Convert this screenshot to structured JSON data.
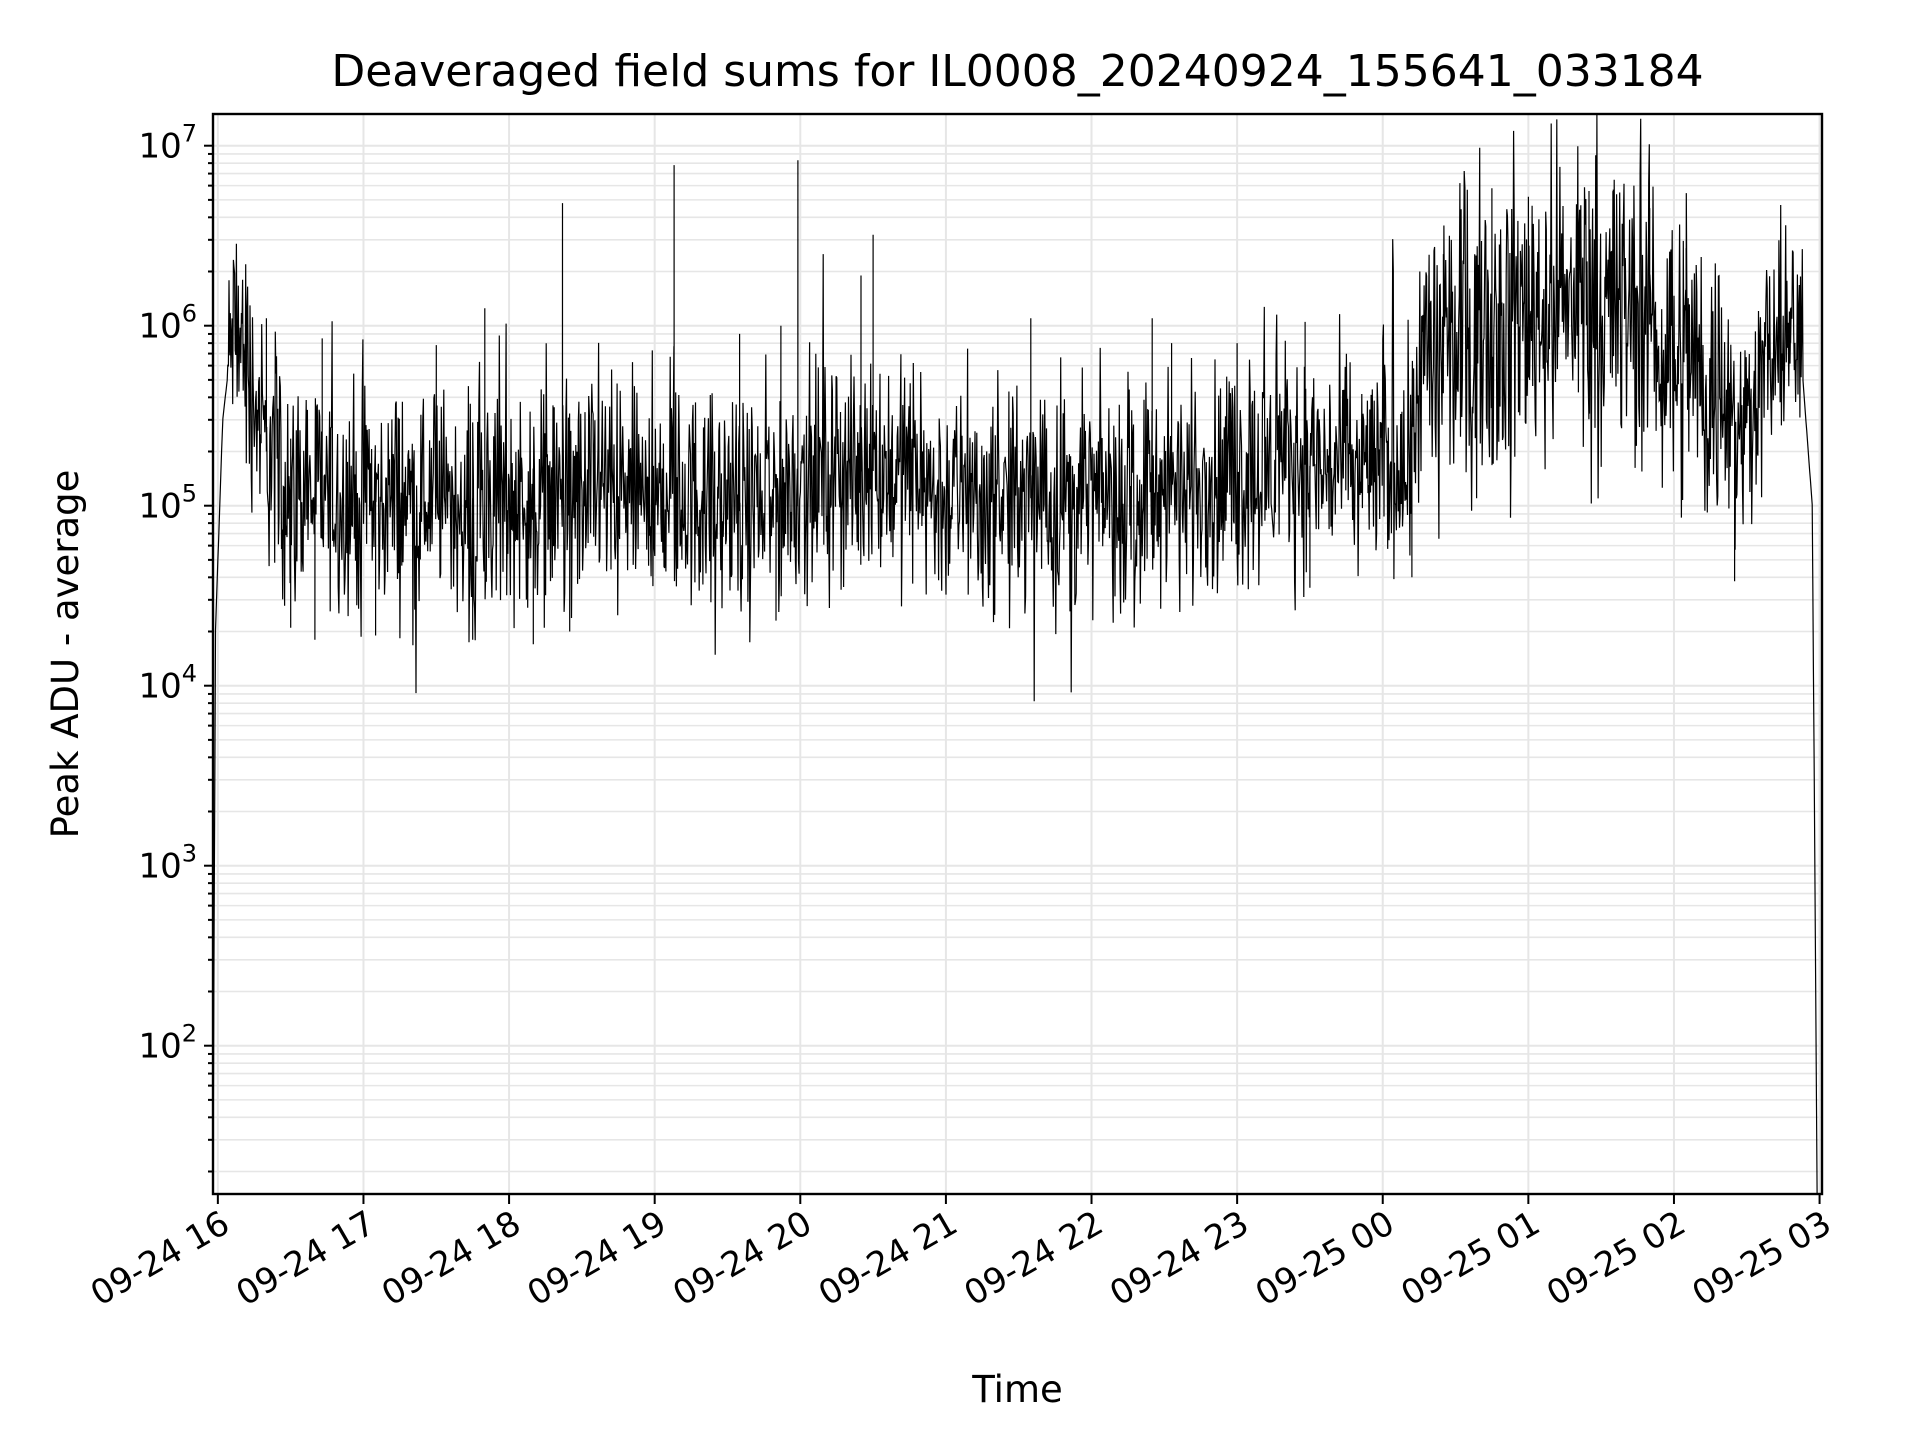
{
  "chart_data": {
    "type": "line",
    "title": "Deaveraged field sums for IL0008_20240924_155641_033184",
    "xlabel": "Time",
    "ylabel": "Peak ADU - average",
    "yscale": "log",
    "ylim": [
      15,
      15000000
    ],
    "xlim": [
      "2024-09-24 15:58",
      "2024-09-25 03:01"
    ],
    "grid": true,
    "x_tick_labels": [
      "09-24 16",
      "09-24 17",
      "09-24 18",
      "09-24 19",
      "09-24 20",
      "09-24 21",
      "09-24 22",
      "09-24 23",
      "09-25 00",
      "09-25 01",
      "09-25 02",
      "09-25 03"
    ],
    "x_ticks": [
      "2024-09-24 16:00",
      "2024-09-24 17:00",
      "2024-09-24 18:00",
      "2024-09-24 19:00",
      "2024-09-24 20:00",
      "2024-09-24 21:00",
      "2024-09-24 22:00",
      "2024-09-24 23:00",
      "2024-09-25 00:00",
      "2024-09-25 01:00",
      "2024-09-25 02:00",
      "2024-09-25 03:00"
    ],
    "y_ticks": [
      {
        "base": "10",
        "exp": "2",
        "value": 100
      },
      {
        "base": "10",
        "exp": "3",
        "value": 1000
      },
      {
        "base": "10",
        "exp": "4",
        "value": 10000
      },
      {
        "base": "10",
        "exp": "5",
        "value": 100000
      },
      {
        "base": "10",
        "exp": "6",
        "value": 1000000
      },
      {
        "base": "10",
        "exp": "7",
        "value": 10000000
      }
    ],
    "series": [
      {
        "color": "#000000",
        "envelope": [
          {
            "t": "2024-09-24 15:58",
            "v": 15
          },
          {
            "t": "2024-09-24 15:59",
            "v": 20000
          },
          {
            "t": "2024-09-24 16:02",
            "v": 300000
          },
          {
            "t": "2024-09-24 16:06",
            "v": 900000
          },
          {
            "t": "2024-09-24 16:10",
            "v": 800000
          },
          {
            "t": "2024-09-24 16:14",
            "v": 450000
          },
          {
            "t": "2024-09-24 16:20",
            "v": 200000
          },
          {
            "t": "2024-09-24 16:30",
            "v": 120000
          },
          {
            "t": "2024-09-24 17:00",
            "v": 110000
          },
          {
            "t": "2024-09-24 18:00",
            "v": 110000
          },
          {
            "t": "2024-09-24 19:00",
            "v": 120000
          },
          {
            "t": "2024-09-24 19:40",
            "v": 90000
          },
          {
            "t": "2024-09-24 19:58",
            "v": 120000
          },
          {
            "t": "2024-09-24 20:00",
            "v": 150000
          },
          {
            "t": "2024-09-24 20:50",
            "v": 160000
          },
          {
            "t": "2024-09-24 20:55",
            "v": 110000
          },
          {
            "t": "2024-09-24 22:00",
            "v": 110000
          },
          {
            "t": "2024-09-24 23:00",
            "v": 140000
          },
          {
            "t": "2024-09-24 23:20",
            "v": 180000
          },
          {
            "t": "2024-09-24 23:35",
            "v": 160000
          },
          {
            "t": "2024-09-25 00:10",
            "v": 180000
          },
          {
            "t": "2024-09-25 00:18",
            "v": 700000
          },
          {
            "t": "2024-09-25 00:40",
            "v": 900000
          },
          {
            "t": "2024-09-25 01:10",
            "v": 1400000
          },
          {
            "t": "2024-09-25 01:40",
            "v": 1300000
          },
          {
            "t": "2024-09-25 02:05",
            "v": 700000
          },
          {
            "t": "2024-09-25 02:20",
            "v": 400000
          },
          {
            "t": "2024-09-25 02:28",
            "v": 250000
          },
          {
            "t": "2024-09-25 02:35",
            "v": 500000
          },
          {
            "t": "2024-09-25 02:45",
            "v": 900000
          },
          {
            "t": "2024-09-25 02:52",
            "v": 800000
          },
          {
            "t": "2024-09-25 02:57",
            "v": 100000
          },
          {
            "t": "2024-09-25 02:59",
            "v": 15
          }
        ],
        "spikes": [
          {
            "t": "2024-09-24 16:05",
            "v": 1100000
          },
          {
            "t": "2024-09-24 16:20",
            "v": 1100000
          },
          {
            "t": "2024-09-24 16:30",
            "v": 21000
          },
          {
            "t": "2024-09-24 16:40",
            "v": 18000
          },
          {
            "t": "2024-09-24 16:43",
            "v": 850000
          },
          {
            "t": "2024-09-24 17:05",
            "v": 19000
          },
          {
            "t": "2024-09-24 17:30",
            "v": 780000
          },
          {
            "t": "2024-09-24 17:45",
            "v": 18000
          },
          {
            "t": "2024-09-24 17:50",
            "v": 1250000
          },
          {
            "t": "2024-09-24 18:10",
            "v": 17000
          },
          {
            "t": "2024-09-24 18:22",
            "v": 4800000
          },
          {
            "t": "2024-09-24 18:25",
            "v": 20000
          },
          {
            "t": "2024-09-24 19:08",
            "v": 7800000
          },
          {
            "t": "2024-09-24 19:35",
            "v": 900000
          },
          {
            "t": "2024-09-24 19:50",
            "v": 23000
          },
          {
            "t": "2024-09-24 19:52",
            "v": 1000000
          },
          {
            "t": "2024-09-24 19:59",
            "v": 8300000
          },
          {
            "t": "2024-09-24 20:25",
            "v": 1900000
          },
          {
            "t": "2024-09-24 20:30",
            "v": 3200000
          },
          {
            "t": "2024-09-24 21:35",
            "v": 1100000
          },
          {
            "t": "2024-09-24 22:25",
            "v": 1100000
          },
          {
            "t": "2024-09-24 22:33",
            "v": 800000
          },
          {
            "t": "2024-09-24 23:00",
            "v": 800000
          },
          {
            "t": "2024-09-24 23:28",
            "v": 1050000
          },
          {
            "t": "2024-09-24 23:30",
            "v": 35000
          },
          {
            "t": "2024-09-25 00:12",
            "v": 40000
          },
          {
            "t": "2024-09-25 00:25",
            "v": 2500000
          },
          {
            "t": "2024-09-25 00:45",
            "v": 5800000
          },
          {
            "t": "2024-09-25 01:00",
            "v": 5200000
          },
          {
            "t": "2024-09-25 01:25",
            "v": 5600000
          },
          {
            "t": "2024-09-25 01:35",
            "v": 5700000
          },
          {
            "t": "2024-09-25 01:50",
            "v": 4500000
          },
          {
            "t": "2024-09-25 02:05",
            "v": 2700000
          },
          {
            "t": "2024-09-25 02:25",
            "v": 38000
          },
          {
            "t": "2024-09-25 02:48",
            "v": 1250000
          }
        ]
      }
    ]
  }
}
